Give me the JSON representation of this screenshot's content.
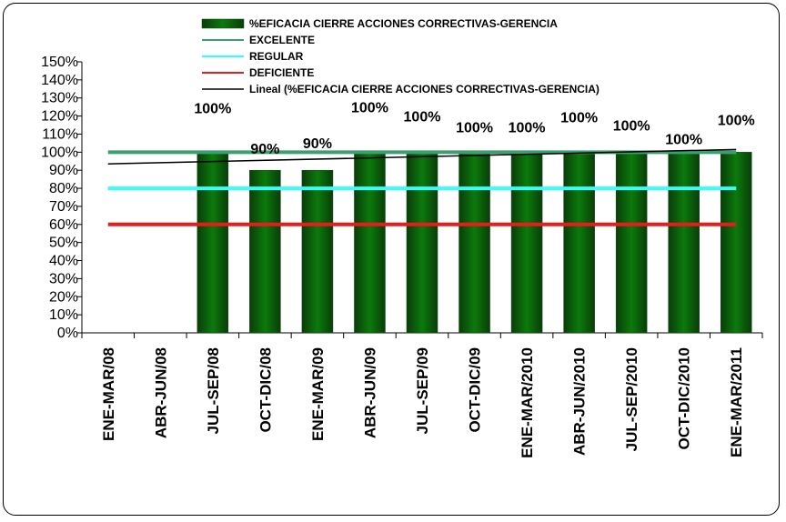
{
  "chart_data": {
    "type": "bar",
    "categories": [
      "ENE-MAR/08",
      "ABR-JUN/08",
      "JUL-SEP/08",
      "OCT-DIC/08",
      "ENE-MAR/09",
      "ABR-JUN/09",
      "JUL-SEP/09",
      "OCT-DIC/09",
      "ENE-MAR/2010",
      "ABR-JUN/2010",
      "JUL-SEP/2010",
      "OCT-DIC/2010",
      "ENE-MAR/2011"
    ],
    "series": [
      {
        "name": "%EFICACIA CIERRE ACCIONES CORRECTIVAS-GERENCIA",
        "kind": "bar",
        "values": [
          null,
          null,
          100,
          90,
          90,
          100,
          100,
          100,
          100,
          100,
          100,
          100,
          100
        ],
        "labels": [
          "",
          "",
          "100%",
          "90%",
          "90%",
          "100%",
          "100%",
          "100%",
          "100%",
          "100%",
          "100%",
          "100%",
          "100%"
        ],
        "color": "#006400"
      },
      {
        "name": "EXCELENTE",
        "kind": "line",
        "value": 100,
        "color": "#3aa070"
      },
      {
        "name": "REGULAR",
        "kind": "line",
        "value": 80,
        "color": "#33ffff"
      },
      {
        "name": "DEFICIENTE",
        "kind": "line",
        "value": 60,
        "color": "#e81c1c"
      },
      {
        "name": "Lineal (%EFICACIA CIERRE ACCIONES CORRECTIVAS-GERENCIA)",
        "kind": "trendline",
        "start": 93.5,
        "end": 101.5,
        "color": "#000000"
      }
    ],
    "ylim": [
      0,
      150
    ],
    "yticks": [
      "0%",
      "10%",
      "20%",
      "30%",
      "40%",
      "50%",
      "60%",
      "70%",
      "80%",
      "90%",
      "100%",
      "110%",
      "120%",
      "130%",
      "140%",
      "150%"
    ],
    "legend_position": "top-center",
    "grid": false,
    "title": "",
    "xlabel": "",
    "ylabel": ""
  }
}
